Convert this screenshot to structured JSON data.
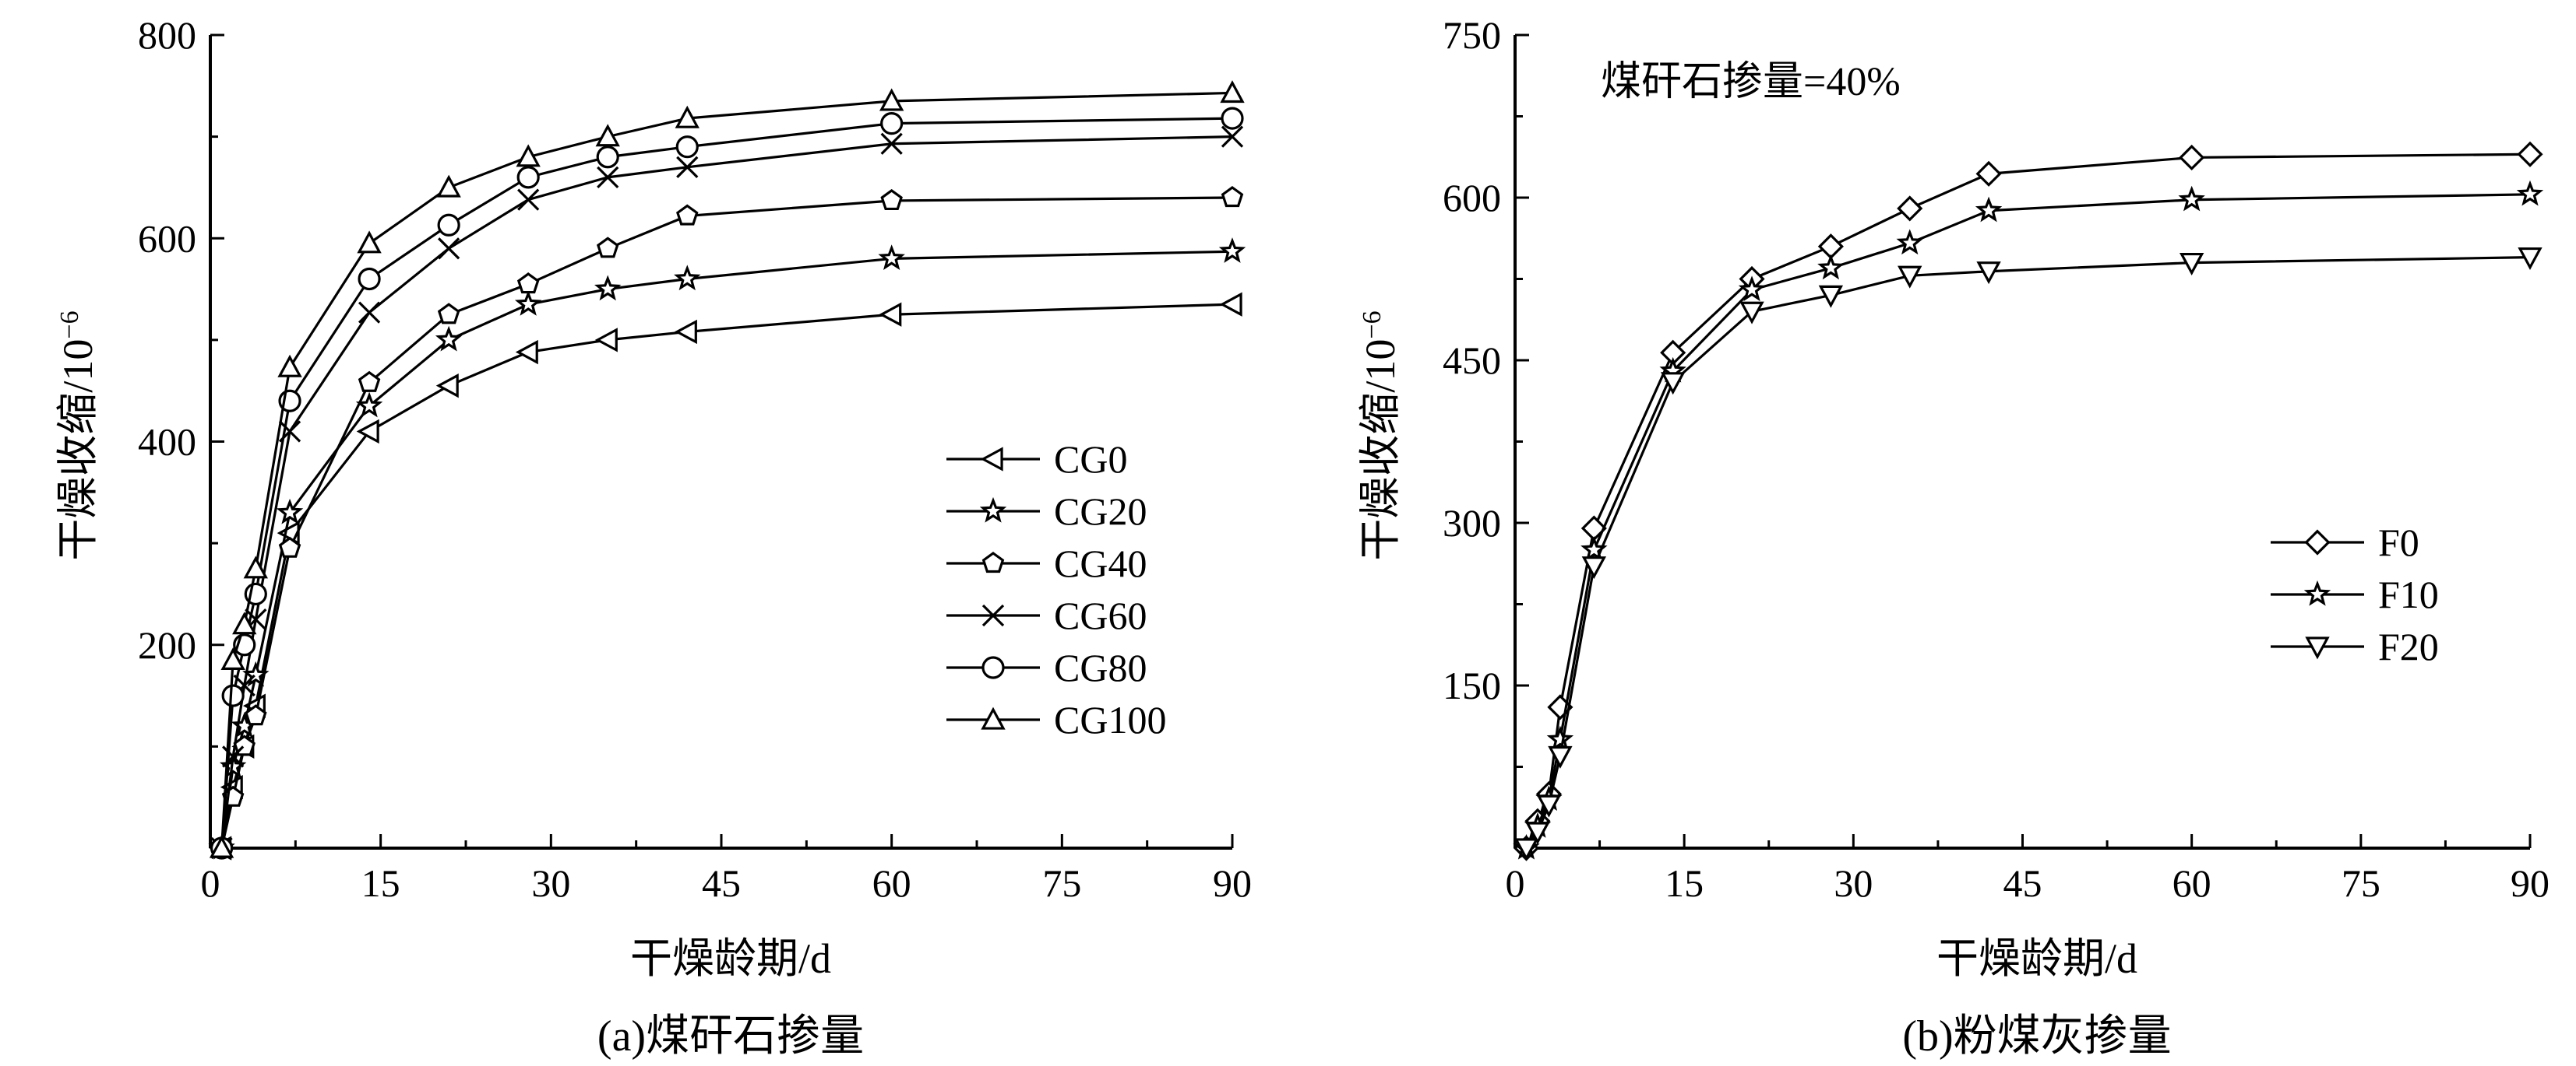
{
  "chart_data": [
    {
      "type": "line",
      "caption": "(a)煤矸石掺量",
      "xlabel": "干燥龄期/d",
      "ylabel": "干燥收缩/10",
      "ylabel_exponent": "−6",
      "xlim": [
        0,
        90
      ],
      "ylim": [
        0,
        800
      ],
      "x_ticks": [
        0,
        15,
        30,
        45,
        60,
        75,
        90
      ],
      "y_ticks": [
        200,
        400,
        600,
        800
      ],
      "legend_position": "center-right",
      "x": [
        1,
        2,
        3,
        4,
        7,
        14,
        21,
        28,
        35,
        42,
        60,
        90
      ],
      "series": [
        {
          "name": "CG0",
          "marker": "triangle-left",
          "values": [
            0,
            60,
            100,
            140,
            310,
            410,
            455,
            488,
            500,
            508,
            525,
            535
          ]
        },
        {
          "name": "CG20",
          "marker": "star",
          "values": [
            0,
            80,
            120,
            170,
            330,
            435,
            500,
            535,
            550,
            560,
            580,
            587
          ]
        },
        {
          "name": "CG40",
          "marker": "pentagon",
          "values": [
            0,
            50,
            100,
            130,
            295,
            458,
            525,
            555,
            590,
            622,
            637,
            640
          ]
        },
        {
          "name": "CG60",
          "marker": "x",
          "values": [
            0,
            90,
            160,
            225,
            410,
            527,
            590,
            638,
            660,
            670,
            693,
            700
          ]
        },
        {
          "name": "CG80",
          "marker": "circle",
          "values": [
            0,
            150,
            200,
            250,
            440,
            560,
            613,
            660,
            680,
            690,
            713,
            718
          ]
        },
        {
          "name": "CG100",
          "marker": "triangle-up",
          "values": [
            0,
            185,
            220,
            275,
            473,
            595,
            650,
            680,
            700,
            718,
            735,
            743
          ]
        }
      ]
    },
    {
      "type": "line",
      "caption": "(b)粉煤灰掺量",
      "annotation": "煤矸石掺量=40%",
      "xlabel": "干燥龄期/d",
      "ylabel": "干燥收缩/10",
      "ylabel_exponent": "−6",
      "xlim": [
        0,
        90
      ],
      "ylim": [
        0,
        750
      ],
      "x_ticks": [
        0,
        15,
        30,
        45,
        60,
        75,
        90
      ],
      "y_ticks": [
        150,
        300,
        450,
        600,
        750
      ],
      "legend_position": "center-right",
      "x": [
        1,
        2,
        3,
        4,
        7,
        14,
        21,
        28,
        35,
        42,
        60,
        90
      ],
      "series": [
        {
          "name": "F0",
          "marker": "diamond",
          "values": [
            0,
            25,
            50,
            130,
            295,
            457,
            525,
            555,
            590,
            622,
            637,
            640
          ]
        },
        {
          "name": "F10",
          "marker": "star",
          "values": [
            0,
            20,
            45,
            100,
            275,
            440,
            515,
            535,
            558,
            588,
            598,
            603
          ]
        },
        {
          "name": "F20",
          "marker": "triangle-down",
          "values": [
            0,
            15,
            40,
            85,
            260,
            430,
            495,
            510,
            528,
            532,
            540,
            545
          ]
        }
      ]
    }
  ]
}
